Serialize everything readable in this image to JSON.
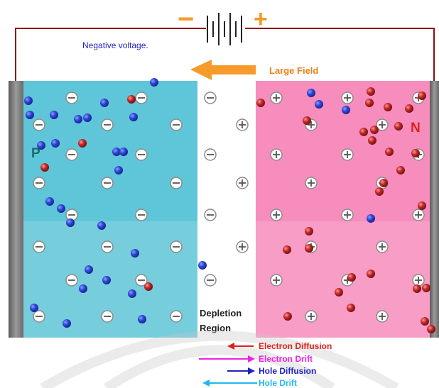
{
  "labels": {
    "battery_minus": "−",
    "battery_plus": "+",
    "voltage": "Negative voltage.",
    "field": "Large Field",
    "p_region": "P",
    "n_region": "N",
    "depletion_line1": "Depletion",
    "depletion_line2": "Region"
  },
  "legend": {
    "items": [
      {
        "label": "Electron Diffusion",
        "color": "#e0201c",
        "direction": "left"
      },
      {
        "label": "Electron Drift",
        "color": "#f021e6",
        "direction": "right"
      },
      {
        "label": "Hole Diffusion",
        "color": "#2020c8",
        "direction": "right"
      },
      {
        "label": "Hole Drift",
        "color": "#22b8ee",
        "direction": "left"
      }
    ]
  },
  "colors": {
    "p_region": "#5ec6d8",
    "n_region": "#f78dbd",
    "wire": "#8b1010",
    "field_arrow": "#f79a2c",
    "voltage_text": "#2323c8",
    "field_text": "#f07f17",
    "electron": "#2339c9",
    "hole": "#b7202a",
    "electrode": "#7f7f7f"
  },
  "icons": [
    "battery-icon",
    "field-arrow-icon",
    "minus-ion-icon",
    "plus-ion-icon",
    "electron-icon",
    "hole-icon"
  ]
}
